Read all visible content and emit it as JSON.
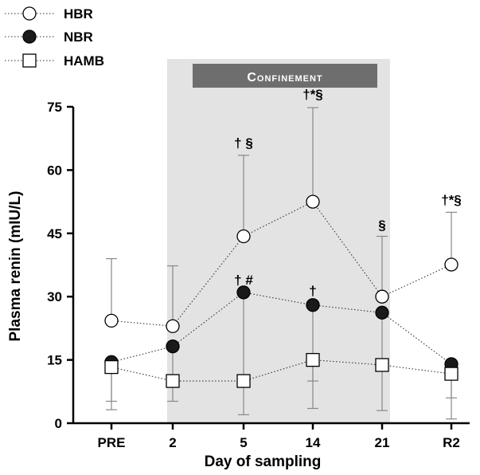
{
  "chart_data": {
    "type": "line",
    "xlabel": "Day of sampling",
    "ylabel": "Plasma renin (mIU/L)",
    "categories": [
      "PRE",
      "2",
      "5",
      "14",
      "21",
      "R2"
    ],
    "ylim": [
      0,
      75
    ],
    "yticks": [
      0,
      15,
      30,
      45,
      60,
      75
    ],
    "grid": false,
    "legend_position": "top-left",
    "shaded_region": {
      "from_category": "2",
      "to_category": "21",
      "label": "Confinement",
      "fill_color": "#e3e3e3",
      "label_bg_color": "#6e6e6e",
      "label_text_color": "#ffffff"
    },
    "series": [
      {
        "name": "HBR",
        "marker": "open-circle",
        "values": [
          24.3,
          23.0,
          44.3,
          52.5,
          30.0,
          37.6
        ],
        "error_upper": [
          39.0,
          37.3,
          63.5,
          74.8,
          44.3,
          50.0
        ],
        "error_lower": [
          null,
          null,
          null,
          null,
          null,
          null
        ]
      },
      {
        "name": "NBR",
        "marker": "filled-circle",
        "values": [
          14.5,
          18.2,
          31.0,
          28.0,
          26.2,
          14.0
        ],
        "error_upper": [
          null,
          null,
          null,
          null,
          null,
          null
        ],
        "error_lower": [
          null,
          5.2,
          2.0,
          10.0,
          3.0,
          1.0
        ]
      },
      {
        "name": "HAMB",
        "marker": "open-square",
        "values": [
          13.3,
          10.0,
          10.0,
          15.0,
          13.8,
          11.7
        ],
        "error_upper": [
          null,
          null,
          null,
          null,
          null,
          null
        ],
        "error_lower": [
          3.2,
          null,
          null,
          3.5,
          null,
          null
        ]
      }
    ],
    "error_bar_low": {
      "PRE": 5.2,
      "R2": 6.0
    },
    "annotations": [
      {
        "category": "5",
        "y": 66.5,
        "text": "† §"
      },
      {
        "category": "5",
        "y": 34.0,
        "text": "† #"
      },
      {
        "category": "14",
        "y": 78.0,
        "text": "†*§"
      },
      {
        "category": "14",
        "y": 31.5,
        "text": "†"
      },
      {
        "category": "21",
        "y": 47.0,
        "text": "§"
      },
      {
        "category": "R2",
        "y": 53.0,
        "text": "†*§"
      }
    ]
  }
}
